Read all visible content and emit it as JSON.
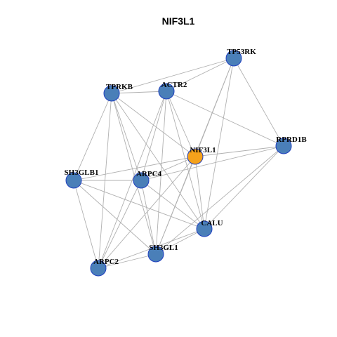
{
  "title": "NIF3L1",
  "colors": {
    "node_default": "#4a7fb8",
    "node_focus": "#f5a21b",
    "edge": "#b0b0b0",
    "node_border": "#1f3fbf"
  },
  "network": {
    "focus": "NIF3L1",
    "nodes": [
      {
        "id": "TP53RK"
      },
      {
        "id": "TPRKB"
      },
      {
        "id": "ACTR2"
      },
      {
        "id": "NIF3L1"
      },
      {
        "id": "RPRD1B"
      },
      {
        "id": "SH3GLB1"
      },
      {
        "id": "ARPC4"
      },
      {
        "id": "CALU"
      },
      {
        "id": "SH3GL1"
      },
      {
        "id": "ARPC2"
      }
    ],
    "edges": [
      [
        "TP53RK",
        "TPRKB"
      ],
      [
        "TP53RK",
        "ACTR2"
      ],
      [
        "TP53RK",
        "NIF3L1"
      ],
      [
        "TP53RK",
        "RPRD1B"
      ],
      [
        "TP53RK",
        "CALU"
      ],
      [
        "TP53RK",
        "SH3GL1"
      ],
      [
        "TPRKB",
        "ACTR2"
      ],
      [
        "TPRKB",
        "NIF3L1"
      ],
      [
        "TPRKB",
        "SH3GLB1"
      ],
      [
        "TPRKB",
        "ARPC4"
      ],
      [
        "TPRKB",
        "CALU"
      ],
      [
        "TPRKB",
        "SH3GL1"
      ],
      [
        "TPRKB",
        "ARPC2"
      ],
      [
        "ACTR2",
        "NIF3L1"
      ],
      [
        "ACTR2",
        "RPRD1B"
      ],
      [
        "ACTR2",
        "ARPC4"
      ],
      [
        "ACTR2",
        "CALU"
      ],
      [
        "ACTR2",
        "SH3GL1"
      ],
      [
        "ACTR2",
        "ARPC2"
      ],
      [
        "NIF3L1",
        "RPRD1B"
      ],
      [
        "NIF3L1",
        "SH3GLB1"
      ],
      [
        "NIF3L1",
        "ARPC4"
      ],
      [
        "NIF3L1",
        "CALU"
      ],
      [
        "NIF3L1",
        "SH3GL1"
      ],
      [
        "NIF3L1",
        "ARPC2"
      ],
      [
        "RPRD1B",
        "ARPC4"
      ],
      [
        "RPRD1B",
        "CALU"
      ],
      [
        "RPRD1B",
        "SH3GL1"
      ],
      [
        "SH3GLB1",
        "ARPC4"
      ],
      [
        "SH3GLB1",
        "CALU"
      ],
      [
        "SH3GLB1",
        "SH3GL1"
      ],
      [
        "SH3GLB1",
        "ARPC2"
      ],
      [
        "ARPC4",
        "CALU"
      ],
      [
        "ARPC4",
        "SH3GL1"
      ],
      [
        "ARPC4",
        "ARPC2"
      ],
      [
        "CALU",
        "SH3GL1"
      ],
      [
        "CALU",
        "ARPC2"
      ],
      [
        "SH3GL1",
        "ARPC2"
      ]
    ]
  }
}
